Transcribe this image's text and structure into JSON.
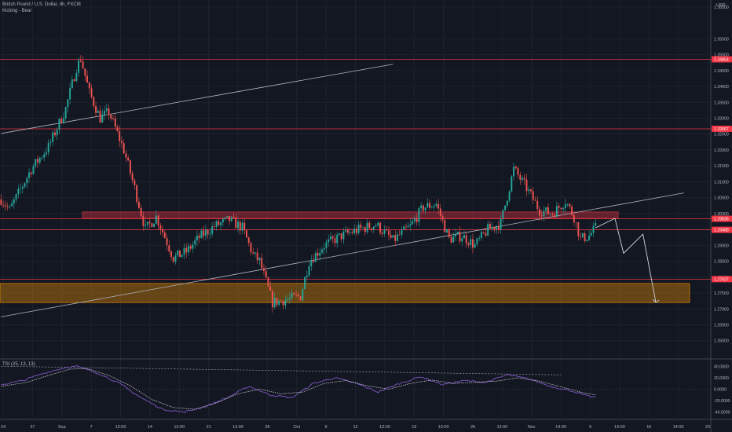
{
  "header": {
    "symbol_title": "British Pound / U.S. Dollar, 4h, FXCM",
    "study_label": "Kicking - Bear",
    "currency": "USD"
  },
  "chart_data": {
    "type": "candlestick",
    "price_axis": {
      "ylim": [
        1.2545,
        1.3672
      ],
      "ticks": [
        "1.36500",
        "1.35500",
        "1.35000",
        "1.34500",
        "1.34000",
        "1.33500",
        "1.33000",
        "1.32500",
        "1.32000",
        "1.31500",
        "1.31000",
        "1.30500",
        "1.30000",
        "1.29500",
        "1.29000",
        "1.28500",
        "1.28000",
        "1.27500",
        "1.27000",
        "1.26500",
        "1.26000"
      ],
      "tick_values": [
        1.365,
        1.355,
        1.35,
        1.345,
        1.34,
        1.335,
        1.33,
        1.325,
        1.32,
        1.315,
        1.31,
        1.305,
        1.3,
        1.295,
        1.29,
        1.285,
        1.28,
        1.275,
        1.27,
        1.265,
        1.26
      ],
      "price_labels": [
        {
          "text": "1.34854",
          "value": 1.34854,
          "color": "#f23645"
        },
        {
          "text": "1.32667",
          "value": 1.32667,
          "color": "#f23645"
        },
        {
          "text": "1.29836",
          "value": 1.29836,
          "color": "#f23645"
        },
        {
          "text": "1.29488",
          "value": 1.29488,
          "color": "#f23645"
        },
        {
          "text": "1.27937",
          "value": 1.27937,
          "color": "#f23645"
        }
      ]
    },
    "time_axis": {
      "labels": [
        "24",
        "27",
        "Sep",
        "7",
        "13:00",
        "14",
        "13:00",
        "21",
        "13:00",
        "28",
        "Oct",
        "6",
        "12",
        "13:00",
        "19",
        "13:00",
        "26",
        "13:00",
        "Nov",
        "14:00",
        "9",
        "14:00",
        "16",
        "14:00",
        "23"
      ]
    },
    "horizontal_levels": [
      1.34854,
      1.32667,
      1.29836,
      1.29488,
      1.27937
    ],
    "zones": [
      {
        "type": "resistance",
        "top": 1.3005,
        "bottom": 1.2985,
        "color": "#f23645"
      },
      {
        "type": "support",
        "top": 1.278,
        "bottom": 1.272,
        "color": "#ff9800"
      }
    ],
    "trendlines": [
      {
        "from": {
          "bar": 0,
          "price": 1.3252
        },
        "to": {
          "bar": 182,
          "price": 1.347
        }
      },
      {
        "from": {
          "bar": 0,
          "price": 1.2675
        },
        "to": {
          "bar": 317,
          "price": 1.3065
        }
      }
    ],
    "projection": [
      {
        "bar": 276,
        "price": 1.2955
      },
      {
        "bar": 285,
        "price": 1.2985
      },
      {
        "bar": 289,
        "price": 1.2875
      },
      {
        "bar": 298,
        "price": 1.2935
      },
      {
        "bar": 304,
        "price": 1.272
      }
    ],
    "waypoints": [
      [
        0,
        1.3045
      ],
      [
        4,
        1.3012
      ],
      [
        14,
        1.314
      ],
      [
        22,
        1.321
      ],
      [
        30,
        1.333
      ],
      [
        35,
        1.346
      ],
      [
        37,
        1.3488
      ],
      [
        41,
        1.338
      ],
      [
        46,
        1.33
      ],
      [
        50,
        1.332
      ],
      [
        57,
        1.32
      ],
      [
        62,
        1.308
      ],
      [
        67,
        1.295
      ],
      [
        72,
        1.299
      ],
      [
        74,
        1.296
      ],
      [
        80,
        1.286
      ],
      [
        86,
        1.288
      ],
      [
        92,
        1.2925
      ],
      [
        99,
        1.296
      ],
      [
        106,
        1.298
      ],
      [
        112,
        1.2955
      ],
      [
        117,
        1.287
      ],
      [
        120,
        1.285
      ],
      [
        126,
        1.272
      ],
      [
        133,
        1.273
      ],
      [
        139,
        1.274
      ],
      [
        143,
        1.285
      ],
      [
        150,
        1.29
      ],
      [
        158,
        1.293
      ],
      [
        166,
        1.295
      ],
      [
        174,
        1.2965
      ],
      [
        182,
        1.2915
      ],
      [
        190,
        1.296
      ],
      [
        196,
        1.302
      ],
      [
        202,
        1.303
      ],
      [
        208,
        1.292
      ],
      [
        214,
        1.293
      ],
      [
        220,
        1.29
      ],
      [
        226,
        1.295
      ],
      [
        232,
        1.297
      ],
      [
        238,
        1.314
      ],
      [
        244,
        1.308
      ],
      [
        250,
        1.301
      ],
      [
        256,
        1.3
      ],
      [
        262,
        1.304
      ],
      [
        266,
        1.299
      ],
      [
        269,
        1.292
      ],
      [
        273,
        1.293
      ],
      [
        276,
        1.2955
      ]
    ],
    "bar_count": 277,
    "colors": {
      "up": "#26a69a",
      "down": "#ef5350",
      "level": "#f23645",
      "trendline": "#b2b5be",
      "projection": "#d1d4dc"
    },
    "oscillator": {
      "name": "TSI",
      "label": "TSI (25, 13, 13)",
      "ylim": [
        -50,
        50
      ],
      "ticks": [
        "40.0000",
        "20.0000",
        "0.0000",
        "-20.0000",
        "-40.0000"
      ],
      "tick_values": [
        40,
        20,
        0,
        -20,
        -40
      ],
      "tsi_waypoints": [
        [
          0,
          8
        ],
        [
          10,
          15
        ],
        [
          20,
          28
        ],
        [
          30,
          38
        ],
        [
          35,
          40
        ],
        [
          45,
          28
        ],
        [
          55,
          10
        ],
        [
          65,
          -15
        ],
        [
          75,
          -35
        ],
        [
          85,
          -40
        ],
        [
          95,
          -30
        ],
        [
          105,
          -15
        ],
        [
          115,
          5
        ],
        [
          125,
          -10
        ],
        [
          135,
          -15
        ],
        [
          145,
          10
        ],
        [
          155,
          20
        ],
        [
          165,
          10
        ],
        [
          175,
          -5
        ],
        [
          185,
          10
        ],
        [
          195,
          22
        ],
        [
          205,
          8
        ],
        [
          215,
          15
        ],
        [
          225,
          12
        ],
        [
          235,
          25
        ],
        [
          245,
          18
        ],
        [
          255,
          5
        ],
        [
          265,
          -3
        ],
        [
          272,
          -12
        ],
        [
          276,
          -14
        ]
      ],
      "signal_waypoints": [
        [
          0,
          5
        ],
        [
          12,
          12
        ],
        [
          22,
          24
        ],
        [
          32,
          35
        ],
        [
          40,
          36
        ],
        [
          50,
          24
        ],
        [
          60,
          6
        ],
        [
          70,
          -18
        ],
        [
          80,
          -32
        ],
        [
          90,
          -35
        ],
        [
          100,
          -24
        ],
        [
          110,
          -8
        ],
        [
          120,
          0
        ],
        [
          130,
          -8
        ],
        [
          140,
          -5
        ],
        [
          150,
          10
        ],
        [
          160,
          15
        ],
        [
          170,
          6
        ],
        [
          180,
          0
        ],
        [
          190,
          10
        ],
        [
          200,
          16
        ],
        [
          210,
          10
        ],
        [
          220,
          12
        ],
        [
          230,
          14
        ],
        [
          240,
          20
        ],
        [
          250,
          14
        ],
        [
          260,
          4
        ],
        [
          270,
          -6
        ],
        [
          276,
          -10
        ]
      ],
      "colors": {
        "tsi": "#7e57c2",
        "signal": "#d1d4dc"
      }
    }
  }
}
